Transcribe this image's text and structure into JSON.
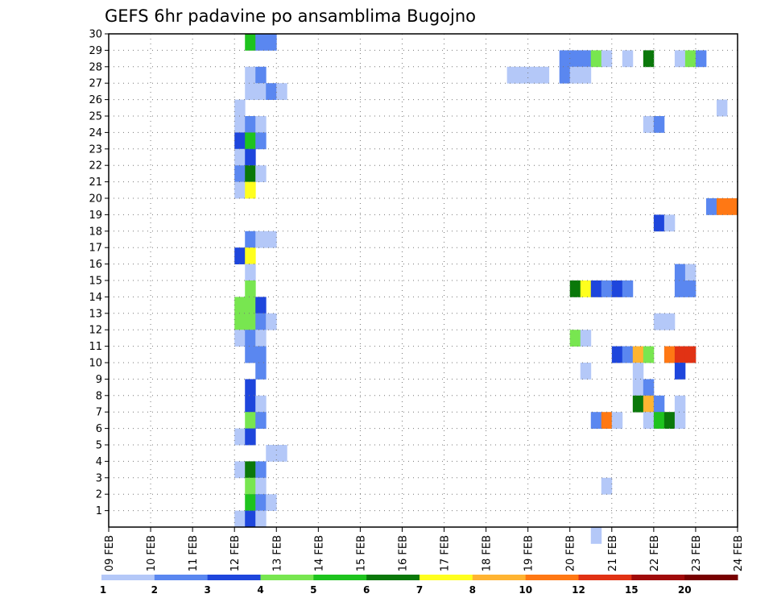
{
  "chart_data": {
    "type": "heatmap",
    "title": "GEFS 6hr padavine po ansamblima Bugojno",
    "x_tick_labels": [
      "09 FEB",
      "10 FEB",
      "11 FEB",
      "12 FEB",
      "13 FEB",
      "14 FEB",
      "15 FEB",
      "16 FEB",
      "17 FEB",
      "18 FEB",
      "19 FEB",
      "20 FEB",
      "21 FEB",
      "22 FEB",
      "23 FEB",
      "24 FEB"
    ],
    "x_range_days": [
      0,
      15
    ],
    "y_tick_labels": [
      "1",
      "2",
      "3",
      "4",
      "5",
      "6",
      "7",
      "8",
      "9",
      "10",
      "11",
      "12",
      "13",
      "14",
      "15",
      "16",
      "17",
      "18",
      "19",
      "20",
      "21",
      "22",
      "23",
      "24",
      "25",
      "26",
      "27",
      "28",
      "29",
      "30"
    ],
    "y_range": [
      0,
      30
    ],
    "grid": true,
    "legend": {
      "placement": "bottom",
      "labels": [
        "1",
        "2",
        "3",
        "4",
        "5",
        "6",
        "7",
        "8",
        "10",
        "12",
        "15",
        "20"
      ],
      "colors": [
        "#b4c8f8",
        "#5a87f0",
        "#1e46dc",
        "#78e650",
        "#1ec31e",
        "#0a780a",
        "#ffff1e",
        "#ffb432",
        "#ff7814",
        "#e13214",
        "#a00a0a",
        "#780000"
      ]
    },
    "cells": [
      {
        "x": 3.25,
        "y": 29.5,
        "v": 5
      },
      {
        "x": 3.5,
        "y": 29.5,
        "v": 2
      },
      {
        "x": 3.75,
        "y": 29.5,
        "v": 2
      },
      {
        "x": 10.75,
        "y": 28.5,
        "v": 2
      },
      {
        "x": 11,
        "y": 28.5,
        "v": 2
      },
      {
        "x": 11.25,
        "y": 28.5,
        "v": 2
      },
      {
        "x": 11.5,
        "y": 28.5,
        "v": 4
      },
      {
        "x": 11.75,
        "y": 28.5,
        "v": 1
      },
      {
        "x": 12.25,
        "y": 28.5,
        "v": 1
      },
      {
        "x": 12.75,
        "y": 28.5,
        "v": 6
      },
      {
        "x": 13.5,
        "y": 28.5,
        "v": 1
      },
      {
        "x": 13.75,
        "y": 28.5,
        "v": 4
      },
      {
        "x": 14,
        "y": 28.5,
        "v": 2
      },
      {
        "x": 3.25,
        "y": 27.5,
        "v": 1
      },
      {
        "x": 3.5,
        "y": 27.5,
        "v": 2
      },
      {
        "x": 9.5,
        "y": 27.5,
        "v": 1
      },
      {
        "x": 9.75,
        "y": 27.5,
        "v": 1
      },
      {
        "x": 10,
        "y": 27.5,
        "v": 1
      },
      {
        "x": 10.25,
        "y": 27.5,
        "v": 1
      },
      {
        "x": 10.75,
        "y": 27.5,
        "v": 2
      },
      {
        "x": 11,
        "y": 27.5,
        "v": 1
      },
      {
        "x": 11.25,
        "y": 27.5,
        "v": 1
      },
      {
        "x": 3.25,
        "y": 26.5,
        "v": 1
      },
      {
        "x": 3.5,
        "y": 26.5,
        "v": 1
      },
      {
        "x": 3.75,
        "y": 26.5,
        "v": 2
      },
      {
        "x": 4,
        "y": 26.5,
        "v": 1
      },
      {
        "x": 3,
        "y": 25.5,
        "v": 1
      },
      {
        "x": 14.5,
        "y": 25.5,
        "v": 1
      },
      {
        "x": 3,
        "y": 24.5,
        "v": 1
      },
      {
        "x": 3.25,
        "y": 24.5,
        "v": 2
      },
      {
        "x": 3.5,
        "y": 24.5,
        "v": 1
      },
      {
        "x": 12.75,
        "y": 24.5,
        "v": 1
      },
      {
        "x": 13,
        "y": 24.5,
        "v": 2
      },
      {
        "x": 3,
        "y": 23.5,
        "v": 3
      },
      {
        "x": 3.25,
        "y": 23.5,
        "v": 5
      },
      {
        "x": 3.5,
        "y": 23.5,
        "v": 2
      },
      {
        "x": 3,
        "y": 22.5,
        "v": 1
      },
      {
        "x": 3.25,
        "y": 22.5,
        "v": 3
      },
      {
        "x": 3,
        "y": 21.5,
        "v": 2
      },
      {
        "x": 3.25,
        "y": 21.5,
        "v": 6
      },
      {
        "x": 3.5,
        "y": 21.5,
        "v": 1
      },
      {
        "x": 3,
        "y": 20.5,
        "v": 1
      },
      {
        "x": 3.25,
        "y": 20.5,
        "v": 7
      },
      {
        "x": 14.25,
        "y": 19.5,
        "v": 2
      },
      {
        "x": 14.5,
        "y": 19.5,
        "v": 11
      },
      {
        "x": 14.75,
        "y": 19.5,
        "v": 11
      },
      {
        "x": 13,
        "y": 18.5,
        "v": 3
      },
      {
        "x": 13.25,
        "y": 18.5,
        "v": 1
      },
      {
        "x": 3.25,
        "y": 17.5,
        "v": 2
      },
      {
        "x": 3.5,
        "y": 17.5,
        "v": 1
      },
      {
        "x": 3.75,
        "y": 17.5,
        "v": 1
      },
      {
        "x": 3,
        "y": 16.5,
        "v": 3
      },
      {
        "x": 3.25,
        "y": 16.5,
        "v": 7
      },
      {
        "x": 3.25,
        "y": 15.5,
        "v": 1
      },
      {
        "x": 13.5,
        "y": 15.5,
        "v": 2
      },
      {
        "x": 13.75,
        "y": 15.5,
        "v": 1
      },
      {
        "x": 3.25,
        "y": 14.5,
        "v": 4
      },
      {
        "x": 11,
        "y": 14.5,
        "v": 6
      },
      {
        "x": 11.25,
        "y": 14.5,
        "v": 7
      },
      {
        "x": 11.5,
        "y": 14.5,
        "v": 3
      },
      {
        "x": 11.75,
        "y": 14.5,
        "v": 2
      },
      {
        "x": 12,
        "y": 14.5,
        "v": 3
      },
      {
        "x": 12.25,
        "y": 14.5,
        "v": 2
      },
      {
        "x": 13.5,
        "y": 14.5,
        "v": 2
      },
      {
        "x": 13.75,
        "y": 14.5,
        "v": 2
      },
      {
        "x": 3,
        "y": 13.5,
        "v": 4
      },
      {
        "x": 3.25,
        "y": 13.5,
        "v": 4
      },
      {
        "x": 3.5,
        "y": 13.5,
        "v": 3
      },
      {
        "x": 3,
        "y": 12.5,
        "v": 4
      },
      {
        "x": 3.25,
        "y": 12.5,
        "v": 4
      },
      {
        "x": 3.5,
        "y": 12.5,
        "v": 2
      },
      {
        "x": 13,
        "y": 12.5,
        "v": 1
      },
      {
        "x": 13.25,
        "y": 12.5,
        "v": 1
      },
      {
        "x": 3.25,
        "y": 12.5,
        "v": 4
      },
      {
        "x": 3.5,
        "y": 12.5,
        "v": 2
      },
      {
        "x": 3.75,
        "y": 12.5,
        "v": 1
      },
      {
        "x": 3,
        "y": 11.5,
        "v": 1
      },
      {
        "x": 3.25,
        "y": 11.5,
        "v": 2
      },
      {
        "x": 3.5,
        "y": 11.5,
        "v": 1
      },
      {
        "x": 11,
        "y": 11.5,
        "v": 4
      },
      {
        "x": 11.25,
        "y": 11.5,
        "v": 1
      },
      {
        "x": 3.25,
        "y": 10.5,
        "v": 2
      },
      {
        "x": 3.5,
        "y": 10.5,
        "v": 2
      },
      {
        "x": 12,
        "y": 10.5,
        "v": 3
      },
      {
        "x": 12.25,
        "y": 10.5,
        "v": 2
      },
      {
        "x": 12.5,
        "y": 10.5,
        "v": 9
      },
      {
        "x": 12.75,
        "y": 10.5,
        "v": 4
      },
      {
        "x": 13.25,
        "y": 10.5,
        "v": 11
      },
      {
        "x": 13.5,
        "y": 10.5,
        "v": 12
      },
      {
        "x": 13.75,
        "y": 10.5,
        "v": 12
      },
      {
        "x": 3.5,
        "y": 9.5,
        "v": 2
      },
      {
        "x": 11.25,
        "y": 9.5,
        "v": 1
      },
      {
        "x": 12.5,
        "y": 9.5,
        "v": 1
      },
      {
        "x": 13.5,
        "y": 9.5,
        "v": 3
      },
      {
        "x": 3.25,
        "y": 8.5,
        "v": 3
      },
      {
        "x": 12.5,
        "y": 8.5,
        "v": 1
      },
      {
        "x": 12.75,
        "y": 8.5,
        "v": 2
      },
      {
        "x": 3.25,
        "y": 7.5,
        "v": 3
      },
      {
        "x": 3.5,
        "y": 7.5,
        "v": 1
      },
      {
        "x": 12.5,
        "y": 7.5,
        "v": 6
      },
      {
        "x": 12.75,
        "y": 7.5,
        "v": 9
      },
      {
        "x": 13,
        "y": 7.5,
        "v": 2
      },
      {
        "x": 13.5,
        "y": 7.5,
        "v": 1
      },
      {
        "x": 3.25,
        "y": 6.5,
        "v": 4
      },
      {
        "x": 3.5,
        "y": 6.5,
        "v": 2
      },
      {
        "x": 11.5,
        "y": 6.5,
        "v": 2
      },
      {
        "x": 11.75,
        "y": 6.5,
        "v": 10
      },
      {
        "x": 12,
        "y": 6.5,
        "v": 1
      },
      {
        "x": 12.75,
        "y": 6.5,
        "v": 1
      },
      {
        "x": 13,
        "y": 6.5,
        "v": 5
      },
      {
        "x": 13.25,
        "y": 6.5,
        "v": 6
      },
      {
        "x": 13.5,
        "y": 6.5,
        "v": 1
      },
      {
        "x": 3,
        "y": 5.5,
        "v": 1
      },
      {
        "x": 3.25,
        "y": 5.5,
        "v": 3
      },
      {
        "x": 3.75,
        "y": 4.5,
        "v": 1
      },
      {
        "x": 4,
        "y": 4.5,
        "v": 1
      },
      {
        "x": 3,
        "y": 3.5,
        "v": 1
      },
      {
        "x": 3.25,
        "y": 3.5,
        "v": 6
      },
      {
        "x": 3.5,
        "y": 3.5,
        "v": 2
      },
      {
        "x": 3.25,
        "y": 2.5,
        "v": 4
      },
      {
        "x": 3.5,
        "y": 2.5,
        "v": 1
      },
      {
        "x": 11.75,
        "y": 2.5,
        "v": 1
      },
      {
        "x": 3.25,
        "y": 1.5,
        "v": 5
      },
      {
        "x": 3.5,
        "y": 1.5,
        "v": 2
      },
      {
        "x": 3.75,
        "y": 1.5,
        "v": 1
      },
      {
        "x": 3,
        "y": 0.5,
        "v": 1
      },
      {
        "x": 3.25,
        "y": 0.5,
        "v": 3
      },
      {
        "x": 3.5,
        "y": 0.5,
        "v": 1
      },
      {
        "x": 11.5,
        "y": -0.5,
        "v": 1
      }
    ]
  }
}
